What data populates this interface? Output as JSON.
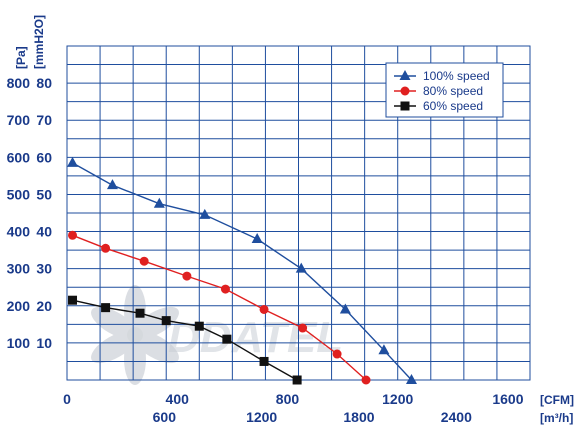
{
  "chart_data": {
    "type": "line",
    "title": "",
    "watermark": "DDATEL",
    "y_axis": {
      "unit_primary": "[Pa]",
      "unit_secondary": "[mmH2O]",
      "ticks": [
        {
          "pa": 100,
          "label_pa": "100",
          "label_mm": "10"
        },
        {
          "pa": 200,
          "label_pa": "200",
          "label_mm": "20"
        },
        {
          "pa": 300,
          "label_pa": "300",
          "label_mm": "30"
        },
        {
          "pa": 400,
          "label_pa": "400",
          "label_mm": "40"
        },
        {
          "pa": 500,
          "label_pa": "500",
          "label_mm": "50"
        },
        {
          "pa": 600,
          "label_pa": "600",
          "label_mm": "60"
        },
        {
          "pa": 700,
          "label_pa": "700",
          "label_mm": "70"
        },
        {
          "pa": 800,
          "label_pa": "800",
          "label_mm": "80"
        }
      ],
      "ylim": [
        0,
        900
      ]
    },
    "x_axis": {
      "unit_cfm": "[CFM]",
      "unit_m3h": "[m³/h]",
      "cfm_ticks": [
        {
          "value": 0,
          "label": "0"
        },
        {
          "value": 400,
          "label": "400"
        },
        {
          "value": 800,
          "label": "800"
        },
        {
          "value": 1200,
          "label": "1200"
        },
        {
          "value": 1600,
          "label": "1600"
        }
      ],
      "m3h_ticks": [
        {
          "cfm": 353.1,
          "label": "600"
        },
        {
          "cfm": 706.3,
          "label": "1200"
        },
        {
          "cfm": 1059.4,
          "label": "1800"
        },
        {
          "cfm": 1412.6,
          "label": "2400"
        }
      ],
      "xlim": [
        0,
        1680
      ],
      "gridline_step": 120
    },
    "legend": {
      "placement": "top-right",
      "entries": [
        {
          "label": "100%  speed",
          "marker": "triangle",
          "color": "#1f4e9e"
        },
        {
          "label": "80%  speed",
          "marker": "circle",
          "color": "#e02020"
        },
        {
          "label": "60%  speed",
          "marker": "square",
          "color": "#111111"
        }
      ]
    },
    "series": [
      {
        "name": "100%  speed",
        "color": "#1f4e9e",
        "marker": "triangle",
        "points": [
          [
            20,
            585
          ],
          [
            165,
            525
          ],
          [
            335,
            475
          ],
          [
            500,
            445
          ],
          [
            690,
            380
          ],
          [
            850,
            300
          ],
          [
            1010,
            190
          ],
          [
            1150,
            80
          ],
          [
            1250,
            0
          ]
        ]
      },
      {
        "name": "80%  speed",
        "color": "#e02020",
        "marker": "circle",
        "points": [
          [
            20,
            390
          ],
          [
            140,
            355
          ],
          [
            280,
            320
          ],
          [
            435,
            280
          ],
          [
            575,
            245
          ],
          [
            715,
            190
          ],
          [
            855,
            140
          ],
          [
            980,
            70
          ],
          [
            1085,
            0
          ]
        ]
      },
      {
        "name": "60%  speed",
        "color": "#111111",
        "marker": "square",
        "points": [
          [
            20,
            215
          ],
          [
            140,
            195
          ],
          [
            265,
            180
          ],
          [
            360,
            160
          ],
          [
            480,
            145
          ],
          [
            580,
            110
          ],
          [
            715,
            50
          ],
          [
            835,
            0
          ]
        ]
      }
    ]
  }
}
